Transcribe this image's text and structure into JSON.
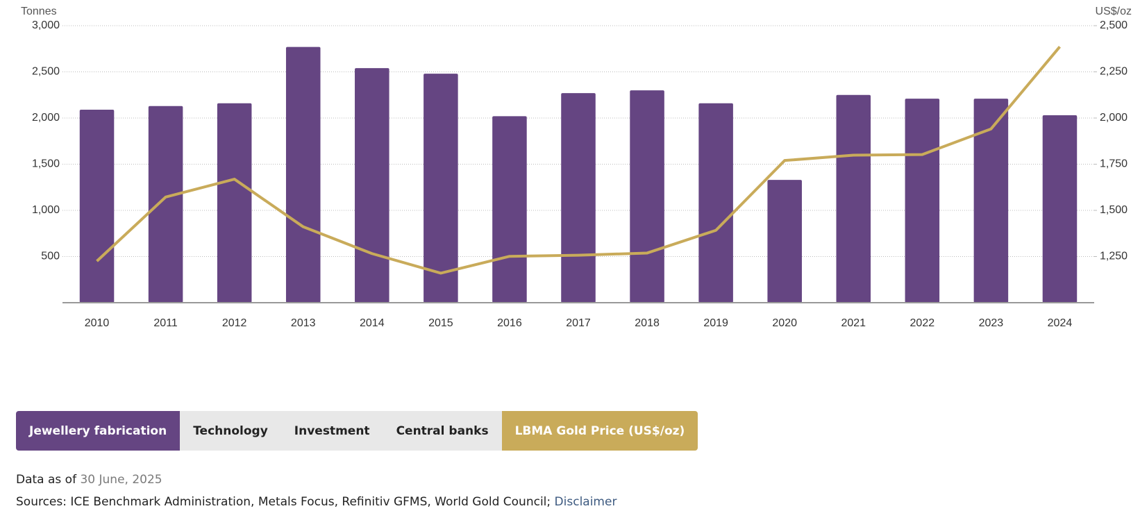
{
  "chart_data": {
    "type": "bar",
    "y_axis_title": "Tonnes",
    "y2_axis_title": "US$/oz",
    "categories": [
      "2010",
      "2011",
      "2012",
      "2013",
      "2014",
      "2015",
      "2016",
      "2017",
      "2018",
      "2019",
      "2020",
      "2021",
      "2022",
      "2023",
      "2024"
    ],
    "series": [
      {
        "name": "Jewellery fabrication",
        "color": "#654582",
        "type": "bar",
        "values": [
          2090,
          2130,
          2160,
          2770,
          2540,
          2480,
          2020,
          2270,
          2300,
          2160,
          1330,
          2250,
          2210,
          2210,
          2030
        ]
      },
      {
        "name": "LBMA Gold Price (US$/oz)",
        "color": "#c9ab5a",
        "type": "line",
        "axis": "y2",
        "values": [
          1225,
          1572,
          1669,
          1411,
          1266,
          1160,
          1251,
          1257,
          1269,
          1392,
          1770,
          1799,
          1802,
          1941,
          2386
        ]
      }
    ],
    "tabs": [
      "Technology",
      "Investment",
      "Central banks"
    ],
    "ylim": [
      0,
      3000
    ],
    "yticks": [
      {
        "value": 500,
        "label": "500"
      },
      {
        "value": 1000,
        "label": "1,000"
      },
      {
        "value": 1500,
        "label": "1,500"
      },
      {
        "value": 2000,
        "label": "2,000"
      },
      {
        "value": 2500,
        "label": "2,500"
      },
      {
        "value": 3000,
        "label": "3,000"
      }
    ],
    "y2lim": [
      1000,
      2500
    ],
    "y2ticks": [
      {
        "value": 1250,
        "label": "1,250"
      },
      {
        "value": 1500,
        "label": "1,500"
      },
      {
        "value": 1750,
        "label": "1,750"
      },
      {
        "value": 2000,
        "label": "2,000"
      },
      {
        "value": 2250,
        "label": "2,250"
      },
      {
        "value": 2500,
        "label": "2,500"
      }
    ],
    "grid": true
  },
  "footer": {
    "data_as_of": "Data as of",
    "date": "30 June, 2025",
    "sources": "Sources: ICE Benchmark Administration, Metals Focus, Refinitiv GFMS, World Gold Council;",
    "disclaimer": "Disclaimer"
  }
}
